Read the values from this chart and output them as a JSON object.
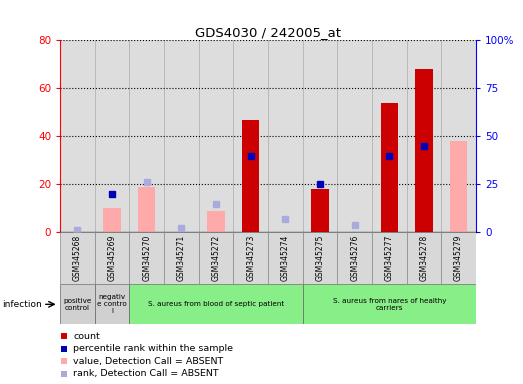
{
  "title": "GDS4030 / 242005_at",
  "samples": [
    "GSM345268",
    "GSM345269",
    "GSM345270",
    "GSM345271",
    "GSM345272",
    "GSM345273",
    "GSM345274",
    "GSM345275",
    "GSM345276",
    "GSM345277",
    "GSM345278",
    "GSM345279"
  ],
  "count_values": [
    null,
    null,
    null,
    null,
    null,
    47,
    null,
    18,
    null,
    54,
    68,
    null
  ],
  "percentile_rank": [
    null,
    20,
    null,
    null,
    null,
    40,
    null,
    25,
    null,
    40,
    45,
    null
  ],
  "value_absent": [
    null,
    10,
    19,
    null,
    9,
    null,
    null,
    null,
    null,
    null,
    null,
    38
  ],
  "rank_absent": [
    1,
    null,
    26,
    2,
    15,
    null,
    7,
    null,
    4,
    null,
    null,
    null
  ],
  "groups": [
    {
      "label": "positive\ncontrol",
      "color": "#d0d0d0",
      "start": 0,
      "end": 1
    },
    {
      "label": "negativ\ne contro\nl",
      "color": "#d0d0d0",
      "start": 1,
      "end": 2
    },
    {
      "label": "S. aureus from blood of septic patient",
      "color": "#88ee88",
      "start": 2,
      "end": 7
    },
    {
      "label": "S. aureus from nares of healthy\ncarriers",
      "color": "#88ee88",
      "start": 7,
      "end": 12
    }
  ],
  "ylim_left": [
    0,
    80
  ],
  "ylim_right": [
    0,
    100
  ],
  "yticks_left": [
    0,
    20,
    40,
    60,
    80
  ],
  "yticks_right": [
    0,
    25,
    50,
    75,
    100
  ],
  "ytick_labels_left": [
    "0",
    "20",
    "40",
    "60",
    "80"
  ],
  "ytick_labels_right": [
    "0",
    "25",
    "50",
    "75",
    "100%"
  ],
  "bar_color_count": "#cc0000",
  "bar_color_absent_value": "#ffaaaa",
  "dot_color_rank": "#0000bb",
  "dot_color_rank_absent": "#aaaadd",
  "infection_label": "infection",
  "legend_items": [
    {
      "label": "count",
      "color": "#cc0000"
    },
    {
      "label": "percentile rank within the sample",
      "color": "#0000bb"
    },
    {
      "label": "value, Detection Call = ABSENT",
      "color": "#ffaaaa"
    },
    {
      "label": "rank, Detection Call = ABSENT",
      "color": "#aaaadd"
    }
  ],
  "col_bg_color": "#dddddd",
  "plot_bg_color": "#ffffff",
  "grid_color": "black",
  "spine_color": "black"
}
